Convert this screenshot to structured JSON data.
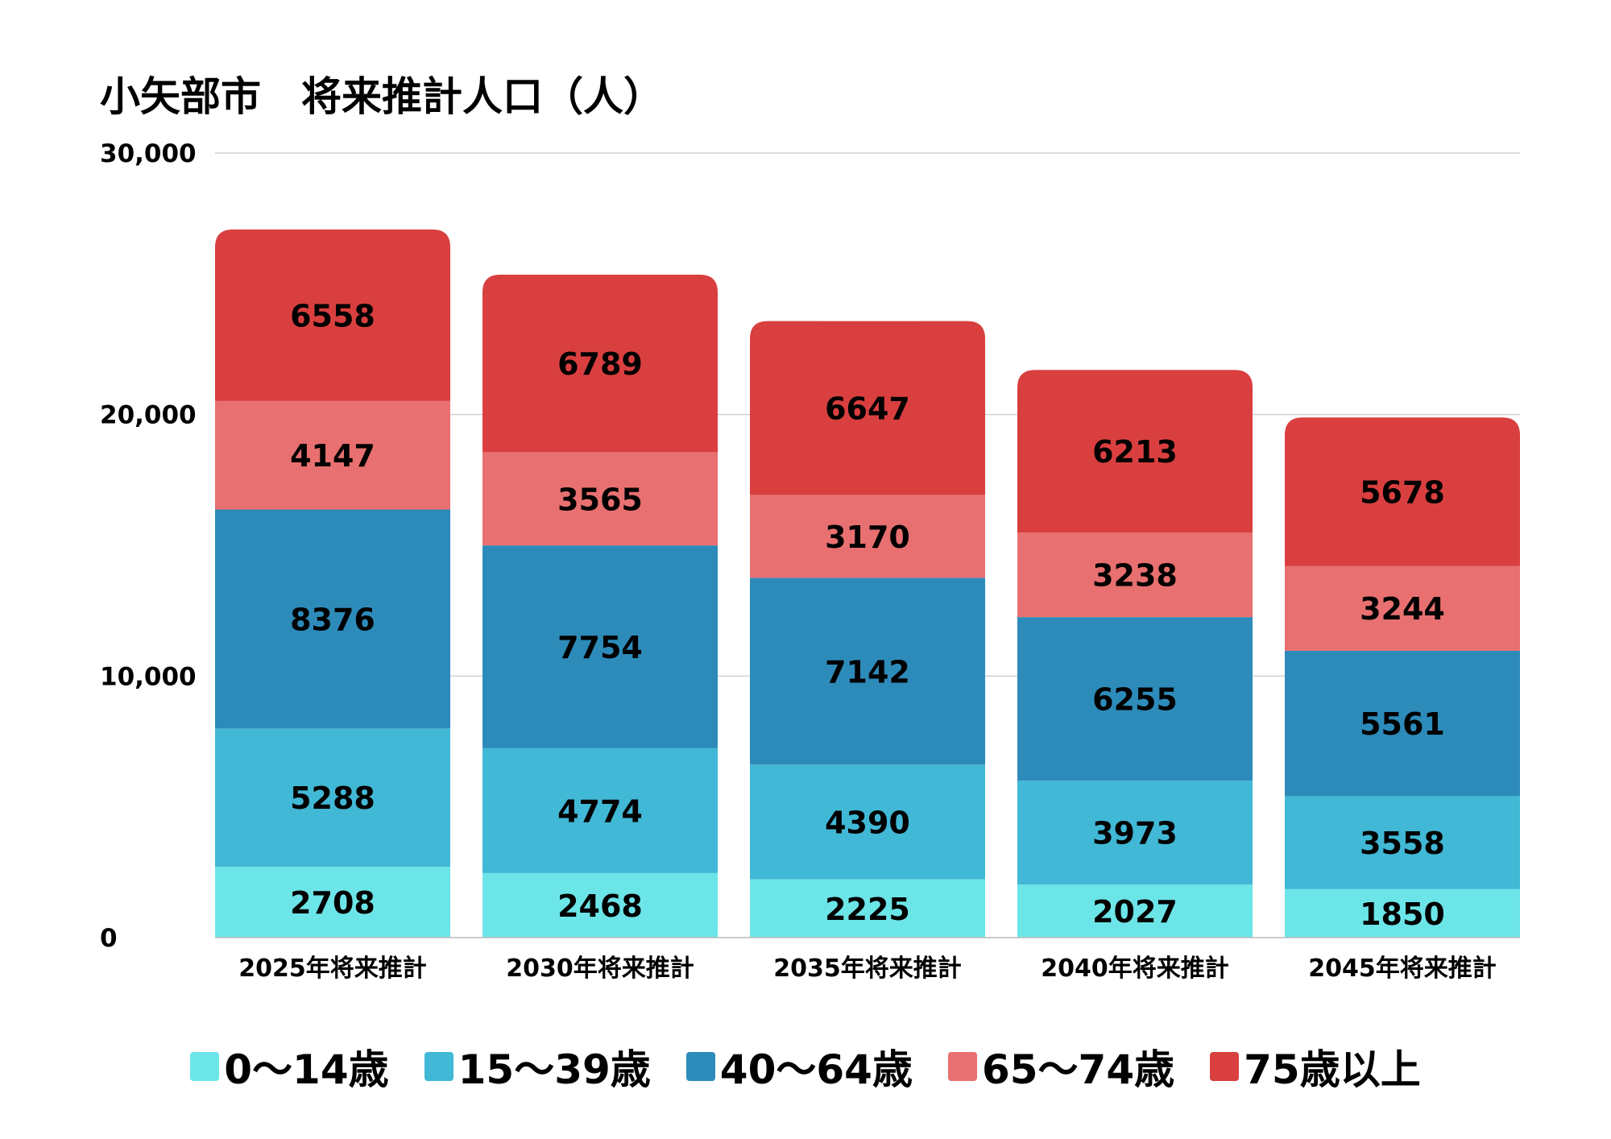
{
  "chart_data": {
    "type": "bar",
    "stacked": true,
    "title": "小矢部市　将来推計人口（人）",
    "xlabel": "",
    "ylabel": "",
    "ylim": [
      0,
      30000
    ],
    "yticks": [
      0,
      10000,
      20000,
      30000
    ],
    "ytick_labels": [
      "0",
      "10,000",
      "20,000",
      "30,000"
    ],
    "grid": true,
    "legend_position": "bottom",
    "categories": [
      "2025年将来推計",
      "2030年将来推計",
      "2035年将来推計",
      "2040年将来推計",
      "2045年将来推計"
    ],
    "series": [
      {
        "name": "0～14歳",
        "color": "#6ce5e8",
        "values": [
          2708,
          2468,
          2225,
          2027,
          1850
        ]
      },
      {
        "name": "15～39歳",
        "color": "#41b8d5",
        "values": [
          5288,
          4774,
          4390,
          3973,
          3558
        ]
      },
      {
        "name": "40～64歳",
        "color": "#2d8bba",
        "values": [
          8376,
          7754,
          7142,
          6255,
          5561
        ]
      },
      {
        "name": "65～74歳",
        "color": "#e87070",
        "values": [
          4147,
          3565,
          3170,
          3238,
          3244
        ]
      },
      {
        "name": "75歳以上",
        "color": "#d93f3f",
        "values": [
          6558,
          6789,
          6647,
          6213,
          5678
        ]
      }
    ]
  }
}
